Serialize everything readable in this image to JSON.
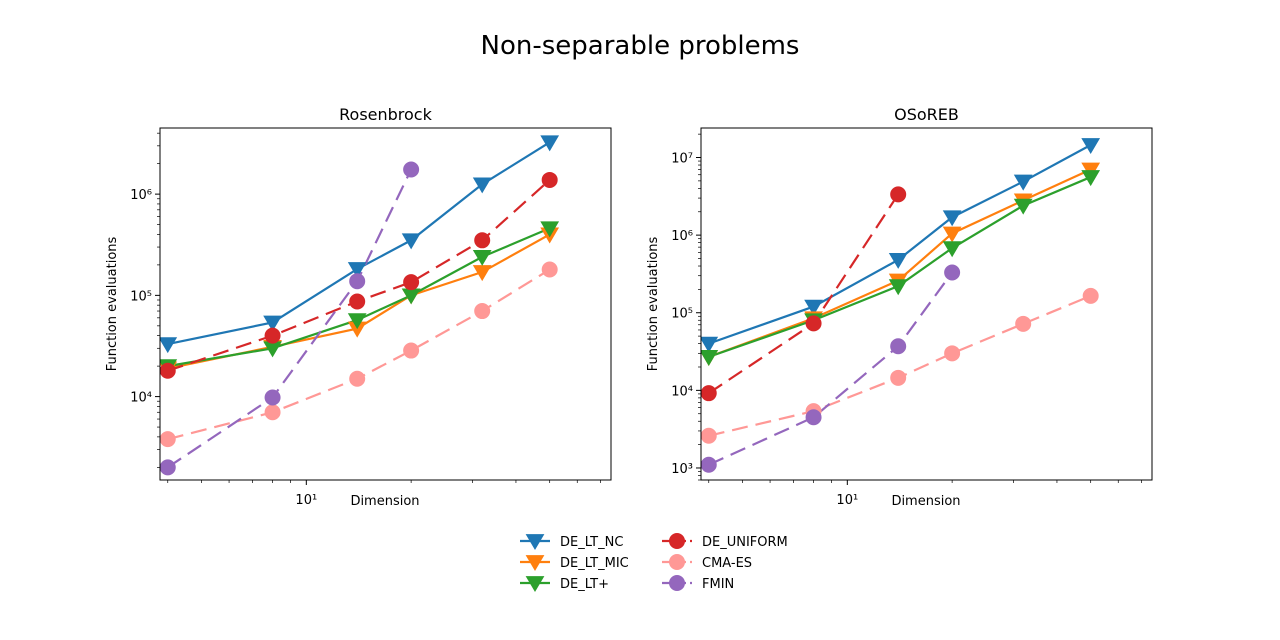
{
  "figure": {
    "title": "Non-separable problems"
  },
  "legend": {
    "placement": "bottom-center",
    "columns": 2,
    "entries": [
      {
        "name": "DE_LT_NC",
        "color": "#1f77b4",
        "marker": "triangle-down",
        "dashed": false
      },
      {
        "name": "DE_LT_MIC",
        "color": "#ff7f0e",
        "marker": "triangle-down",
        "dashed": false
      },
      {
        "name": "DE_LT+",
        "color": "#2ca02c",
        "marker": "triangle-down",
        "dashed": false
      },
      {
        "name": "DE_UNIFORM",
        "color": "#d62728",
        "marker": "circle",
        "dashed": true
      },
      {
        "name": "CMA-ES",
        "color": "#ff9896",
        "marker": "circle",
        "dashed": true
      },
      {
        "name": "FMIN",
        "color": "#9467bd",
        "marker": "circle",
        "dashed": true
      }
    ]
  },
  "chart_data": [
    {
      "type": "line",
      "title": "Rosenbrock",
      "xlabel": "Dimension",
      "ylabel": "Function evaluations",
      "xscale": "log",
      "yscale": "log",
      "xlim": [
        3.8,
        75
      ],
      "ylim": [
        1500,
        4500000
      ],
      "xticks": [
        {
          "value": 10,
          "label": "10¹"
        }
      ],
      "yticks": [
        {
          "value": 10000,
          "label": "10⁴"
        },
        {
          "value": 100000,
          "label": "10⁵"
        },
        {
          "value": 1000000,
          "label": "10⁶"
        }
      ],
      "grid": false,
      "series": [
        {
          "name": "DE_LT_NC",
          "x": [
            4,
            8,
            14,
            20,
            32,
            50
          ],
          "y": [
            33000,
            54000,
            182000,
            350000,
            1250000,
            3250000
          ]
        },
        {
          "name": "DE_LT_MIC",
          "x": [
            4,
            8,
            14,
            20,
            32,
            50
          ],
          "y": [
            19000,
            31000,
            47000,
            100000,
            170000,
            400000
          ]
        },
        {
          "name": "DE_LT+",
          "x": [
            4,
            8,
            14,
            20,
            32,
            50
          ],
          "y": [
            20000,
            30000,
            57000,
            100000,
            240000,
            460000
          ]
        },
        {
          "name": "DE_UNIFORM",
          "x": [
            4,
            8,
            14,
            20,
            32,
            50
          ],
          "y": [
            18000,
            40000,
            87000,
            135000,
            350000,
            1380000
          ]
        },
        {
          "name": "CMA-ES",
          "x": [
            4,
            8,
            14,
            20,
            32,
            50
          ],
          "y": [
            3800,
            7000,
            15000,
            28500,
            70000,
            180000
          ]
        },
        {
          "name": "FMIN",
          "x": [
            4,
            8,
            14,
            20
          ],
          "y": [
            2000,
            9800,
            138000,
            1750000
          ]
        }
      ]
    },
    {
      "type": "line",
      "title": "OSoREB",
      "xlabel": "Dimension",
      "ylabel": "Function evaluations",
      "xscale": "log",
      "yscale": "log",
      "xlim": [
        3.8,
        75
      ],
      "ylim": [
        700,
        24000000
      ],
      "xticks": [
        {
          "value": 10,
          "label": "10¹"
        }
      ],
      "yticks": [
        {
          "value": 1000,
          "label": "10³"
        },
        {
          "value": 10000,
          "label": "10⁴"
        },
        {
          "value": 100000,
          "label": "10⁵"
        },
        {
          "value": 1000000,
          "label": "10⁶"
        },
        {
          "value": 10000000,
          "label": "10⁷"
        }
      ],
      "grid": false,
      "series": [
        {
          "name": "DE_LT_NC",
          "x": [
            4,
            8,
            14,
            20,
            32,
            50
          ],
          "y": [
            40000,
            120000,
            480000,
            1700000,
            4900000,
            14500000
          ]
        },
        {
          "name": "DE_LT_MIC",
          "x": [
            4,
            8,
            14,
            20,
            32,
            50
          ],
          "y": [
            27000,
            85000,
            260000,
            1050000,
            2800000,
            7000000
          ]
        },
        {
          "name": "DE_LT+",
          "x": [
            4,
            8,
            14,
            20,
            32,
            50
          ],
          "y": [
            27000,
            80000,
            220000,
            680000,
            2400000,
            5600000
          ]
        },
        {
          "name": "DE_UNIFORM",
          "x": [
            4,
            8,
            14
          ],
          "y": [
            9200,
            73000,
            3350000
          ]
        },
        {
          "name": "CMA-ES",
          "x": [
            4,
            8,
            14,
            20,
            32,
            50
          ],
          "y": [
            2600,
            5400,
            14500,
            30000,
            72000,
            165000
          ]
        },
        {
          "name": "FMIN",
          "x": [
            4,
            8,
            14,
            20
          ],
          "y": [
            1100,
            4500,
            37000,
            330000
          ]
        }
      ]
    }
  ]
}
